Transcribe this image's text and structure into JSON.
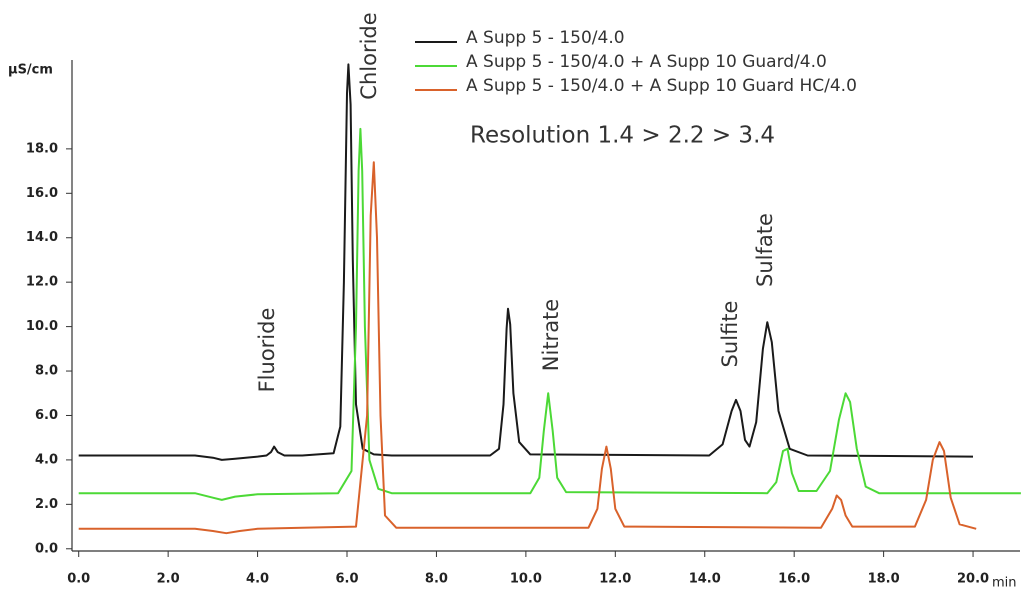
{
  "chart_data": {
    "type": "line",
    "y_label": "µS/cm",
    "x_label": "min",
    "xlim": [
      -0.15,
      21.05
    ],
    "ylim": [
      -0.1,
      22
    ],
    "xticks": [
      {
        "value": 0,
        "label": "0.0"
      },
      {
        "value": 2,
        "label": "2.0"
      },
      {
        "value": 4,
        "label": "4.0"
      },
      {
        "value": 6,
        "label": "6.0"
      },
      {
        "value": 8,
        "label": "8.0"
      },
      {
        "value": 10,
        "label": "10.0"
      },
      {
        "value": 12,
        "label": "12.0"
      },
      {
        "value": 14,
        "label": "14.0"
      },
      {
        "value": 16,
        "label": "16.0"
      },
      {
        "value": 18,
        "label": "18.0"
      },
      {
        "value": 20,
        "label": "20.0"
      }
    ],
    "yticks": [
      {
        "value": 0,
        "label": "0.0"
      },
      {
        "value": 2,
        "label": "2.0"
      },
      {
        "value": 4,
        "label": "4.0"
      },
      {
        "value": 6,
        "label": "6.0"
      },
      {
        "value": 8,
        "label": "8.0"
      },
      {
        "value": 10,
        "label": "10.0"
      },
      {
        "value": 12,
        "label": "12.0"
      },
      {
        "value": 14,
        "label": "14.0"
      },
      {
        "value": 16,
        "label": "16.0"
      },
      {
        "value": 18,
        "label": "18.0"
      }
    ],
    "series": [
      {
        "name": "A Supp 5 - 150/4.0",
        "color": "#1a1a1a",
        "x": [
          0,
          2.6,
          3.0,
          3.2,
          3.5,
          4.0,
          4.2,
          4.3,
          4.37,
          4.45,
          4.6,
          5.0,
          5.7,
          5.85,
          5.93,
          6.0,
          6.03,
          6.08,
          6.13,
          6.2,
          6.35,
          6.6,
          7.0,
          9.2,
          9.4,
          9.5,
          9.57,
          9.6,
          9.65,
          9.72,
          9.85,
          10.1,
          14.1,
          14.4,
          14.6,
          14.7,
          14.8,
          14.9,
          15.0,
          15.15,
          15.3,
          15.4,
          15.5,
          15.65,
          15.9,
          16.3,
          20.0
        ],
        "values": [
          4.2,
          4.2,
          4.1,
          4.0,
          4.05,
          4.15,
          4.2,
          4.35,
          4.6,
          4.35,
          4.2,
          4.2,
          4.3,
          5.5,
          12,
          20.5,
          21.8,
          20,
          13,
          6.5,
          4.5,
          4.25,
          4.2,
          4.2,
          4.5,
          6.5,
          9.9,
          10.8,
          10.1,
          7,
          4.8,
          4.25,
          4.2,
          4.7,
          6.2,
          6.7,
          6.2,
          4.9,
          4.6,
          5.7,
          9.0,
          10.2,
          9.3,
          6.2,
          4.5,
          4.2,
          4.15
        ]
      },
      {
        "name": "A Supp 5 - 150/4.0 + A Supp 10 Guard/4.0",
        "color": "#4cd936",
        "x": [
          0,
          2.6,
          3.0,
          3.2,
          3.5,
          4.0,
          5.8,
          6.1,
          6.2,
          6.26,
          6.3,
          6.34,
          6.4,
          6.5,
          6.7,
          7.0,
          10.1,
          10.3,
          10.4,
          10.5,
          10.6,
          10.7,
          10.9,
          15.4,
          15.6,
          15.75,
          15.85,
          15.95,
          16.1,
          16.5,
          16.8,
          17.0,
          17.15,
          17.25,
          17.4,
          17.6,
          17.9,
          21.07
        ],
        "values": [
          2.5,
          2.5,
          2.3,
          2.2,
          2.35,
          2.45,
          2.5,
          3.5,
          10,
          17,
          18.9,
          17,
          10,
          4,
          2.7,
          2.5,
          2.5,
          3.2,
          5.3,
          7.0,
          5.3,
          3.2,
          2.55,
          2.5,
          3.0,
          4.4,
          4.5,
          3.4,
          2.6,
          2.6,
          3.5,
          5.8,
          7.0,
          6.6,
          4.5,
          2.8,
          2.5,
          2.5
        ]
      },
      {
        "name": "A Supp 5 - 150/4.0 + A Supp 10 Guard HC/4.0",
        "color": "#d9622b",
        "x": [
          0,
          2.6,
          3.0,
          3.3,
          3.6,
          4.0,
          5.0,
          6.2,
          6.45,
          6.53,
          6.6,
          6.67,
          6.75,
          6.85,
          7.1,
          11.4,
          11.6,
          11.7,
          11.8,
          11.9,
          12.0,
          12.2,
          16.6,
          16.85,
          16.95,
          17.05,
          17.15,
          17.3,
          18.7,
          18.95,
          19.1,
          19.25,
          19.35,
          19.5,
          19.7,
          20.07
        ],
        "values": [
          0.9,
          0.9,
          0.8,
          0.7,
          0.8,
          0.9,
          0.95,
          1.0,
          6,
          15,
          17.4,
          14,
          6,
          1.5,
          0.95,
          0.95,
          1.8,
          3.6,
          4.6,
          3.6,
          1.8,
          1.0,
          0.95,
          1.8,
          2.4,
          2.2,
          1.5,
          1.0,
          1.0,
          2.2,
          4.0,
          4.8,
          4.4,
          2.3,
          1.1,
          0.9
        ]
      }
    ],
    "annotations": [
      "Fluoride",
      "Chloride",
      "Nitrate",
      "Sulfite",
      "Sulfate",
      "Resolution 1.4 > 2.2 > 3.4"
    ]
  }
}
